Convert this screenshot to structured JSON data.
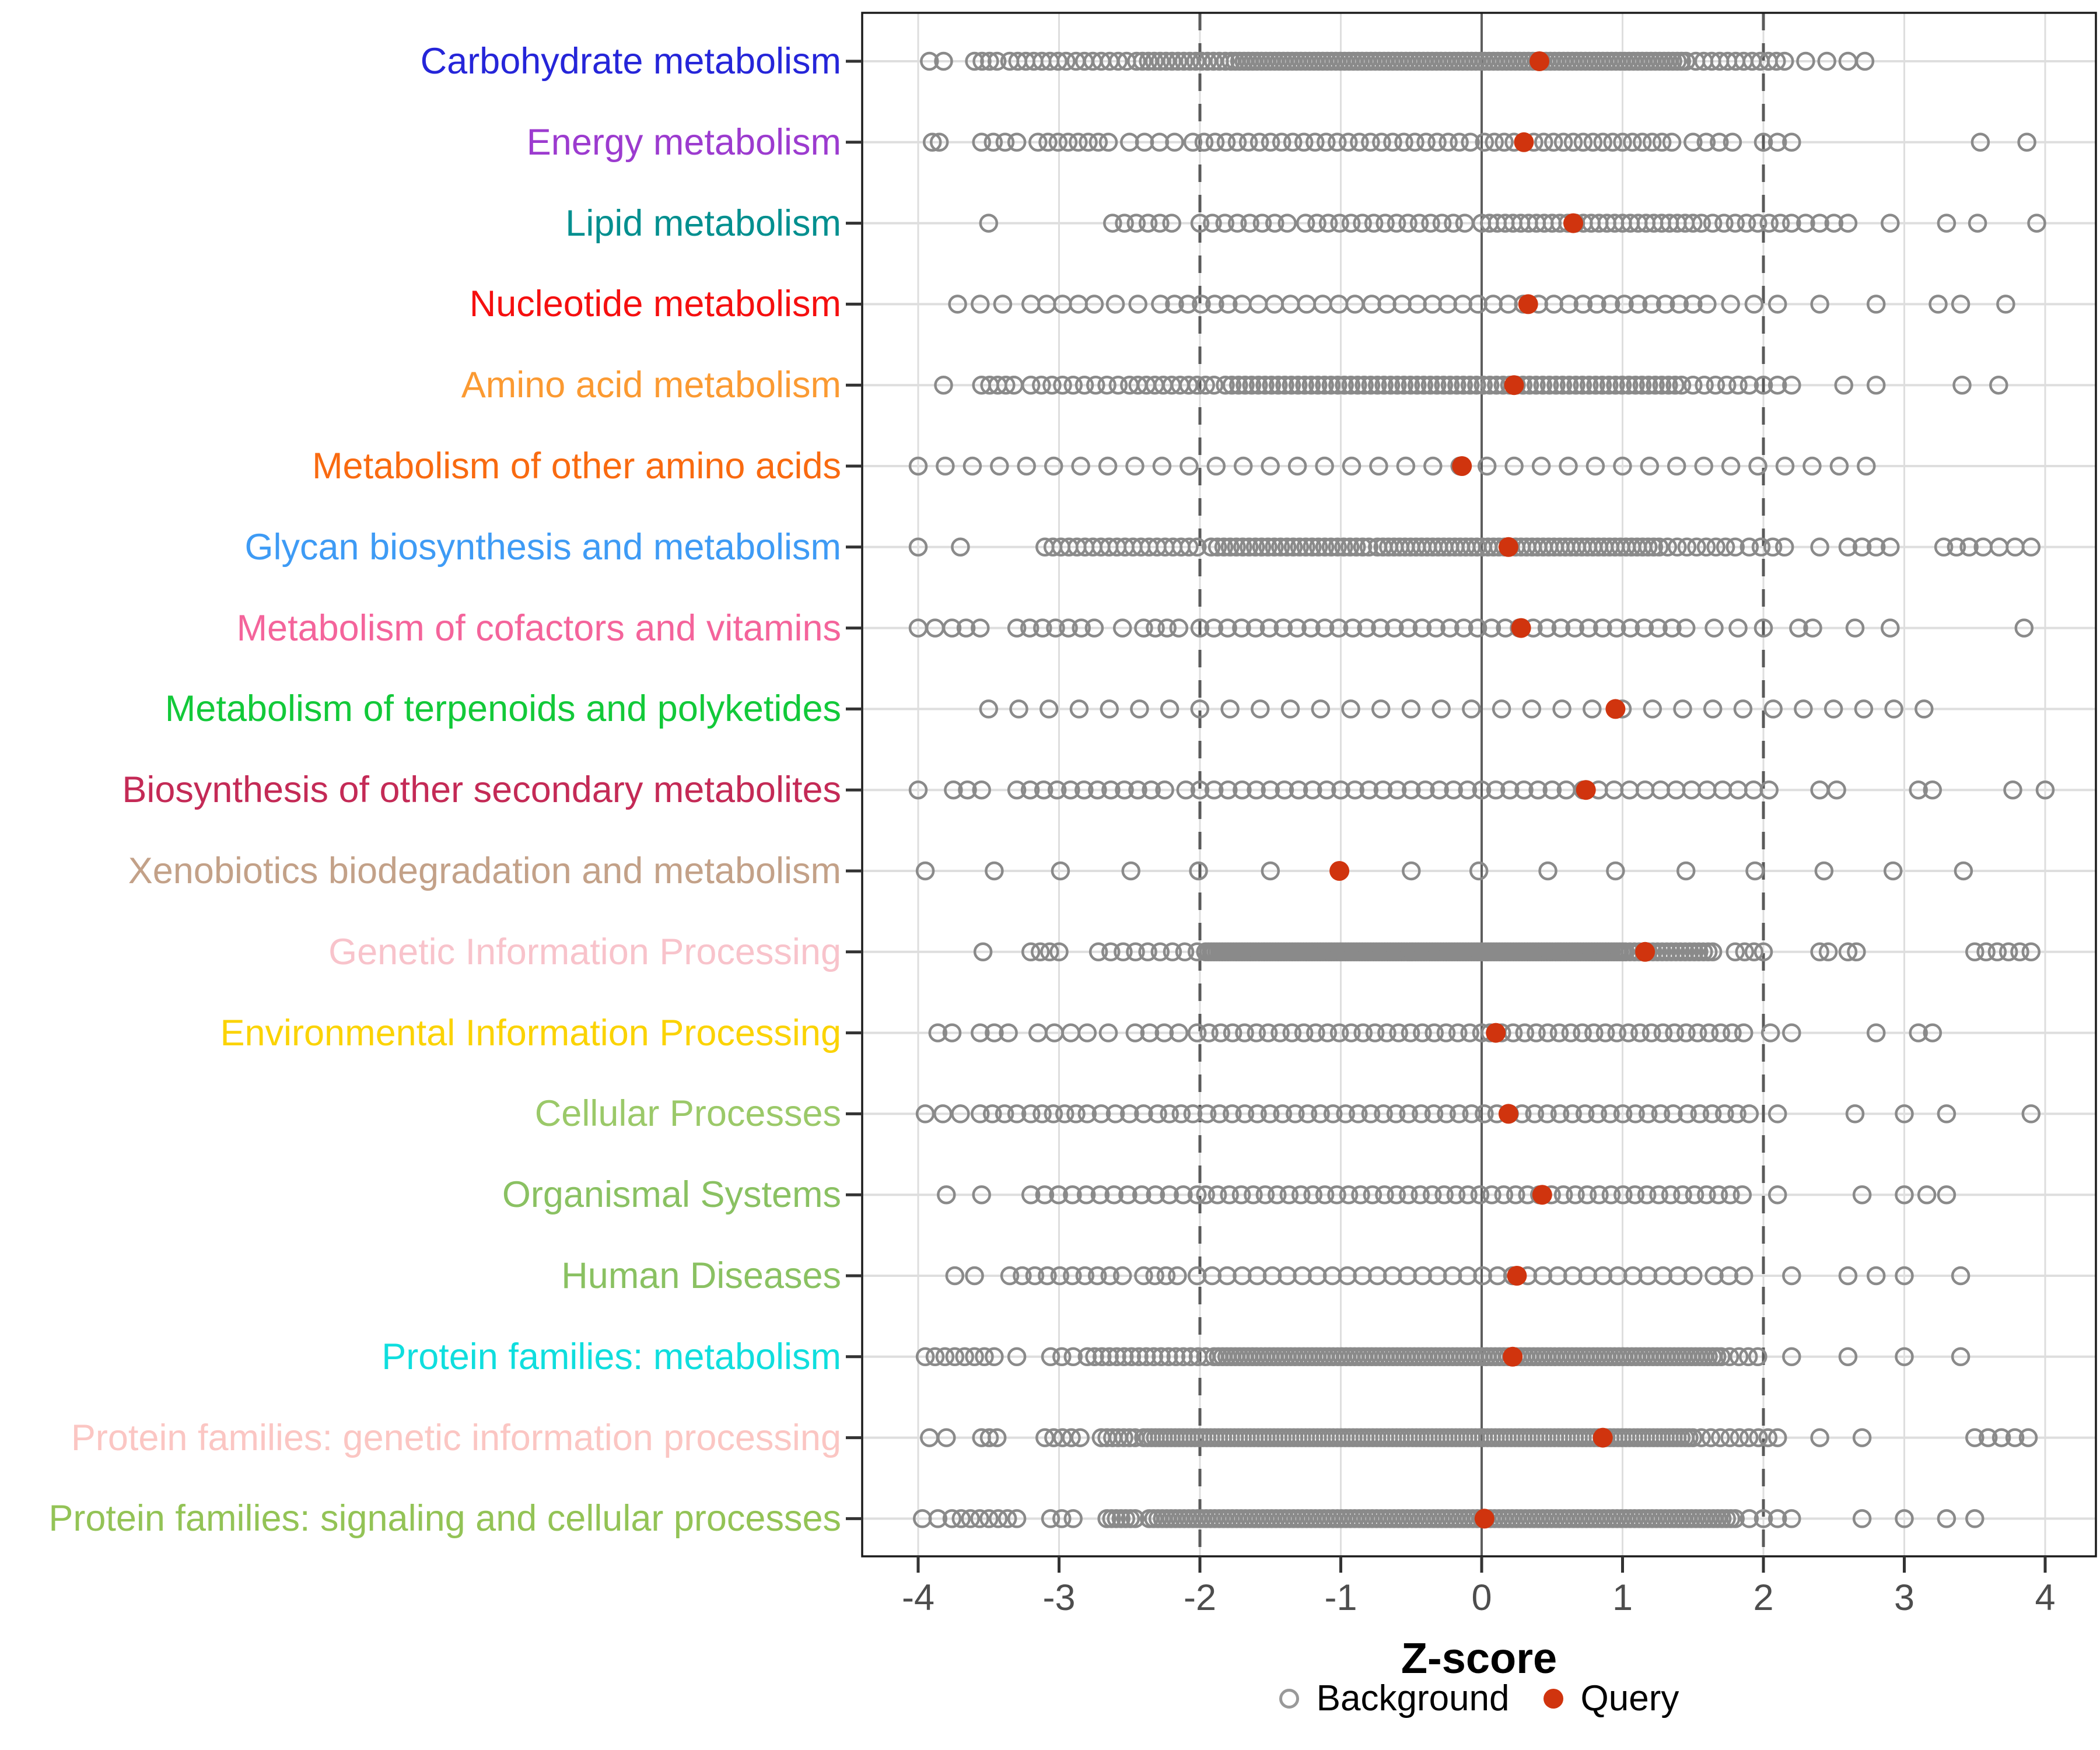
{
  "chart_data": {
    "type": "strip",
    "title": "",
    "xlabel": "Z-score",
    "x_ticks": [
      "-4",
      "-3",
      "-2",
      "-1",
      "0",
      "1",
      "2",
      "3",
      "4"
    ],
    "x_tick_values": [
      -4,
      -3,
      -2,
      -1,
      0,
      1,
      2,
      3,
      4
    ],
    "x_range": [
      -4.45,
      4.35
    ],
    "grid": "major-only",
    "ref_lines": {
      "solid_at": 0,
      "dashed_at": [
        -2,
        2
      ]
    },
    "legend": {
      "background_label": "Background",
      "query_label": "Query"
    },
    "colors": {
      "background_stroke": "#8a8a8a",
      "query_fill": "#d0340e",
      "gridline": "#dedede",
      "zero_line": "#5e5e5e",
      "dashed_line": "#5a5a5a",
      "axis_text": "#4d4d4d",
      "panel_border": "#1a1a1a",
      "tick_mark": "#333333"
    },
    "categories": [
      {
        "label": "Carbohydrate metabolism",
        "color": "#2525d9",
        "query": 0.41,
        "bg_segments": [
          [
            -3.92,
            -3.82,
            2
          ],
          [
            -3.6,
            -3.44,
            4
          ],
          [
            -3.35,
            -2.95,
            8
          ],
          [
            -2.88,
            -2.52,
            7
          ],
          [
            -2.45,
            -1.82,
            16
          ],
          [
            -1.78,
            1.45,
            105
          ],
          [
            1.52,
            1.86,
            7
          ],
          [
            1.92,
            2.15,
            5
          ]
        ],
        "bg_singles": [
          2.3,
          2.45,
          2.6,
          2.72
        ]
      },
      {
        "label": "Energy metabolism",
        "color": "#9c3bcf",
        "query": 0.3,
        "bg_segments": [
          [
            -3.9,
            -3.85,
            2
          ],
          [
            -3.55,
            -3.3,
            4
          ],
          [
            -3.15,
            -2.65,
            8
          ],
          [
            -2.5,
            -2.18,
            4
          ],
          [
            -2.05,
            -0.08,
            26
          ],
          [
            0.02,
            1.35,
            20
          ],
          [
            1.5,
            1.78,
            4
          ],
          [
            2.0,
            2.2,
            3
          ]
        ],
        "bg_singles": [
          3.54,
          3.87
        ]
      },
      {
        "label": "Lipid metabolism",
        "color": "#008f8f",
        "query": 0.65,
        "bg_segments": [
          [
            -2.62,
            -2.2,
            6
          ],
          [
            -2.0,
            -1.38,
            8
          ],
          [
            -1.25,
            -0.12,
            15
          ],
          [
            0.0,
            1.5,
            28
          ],
          [
            1.56,
            2.12,
            8
          ],
          [
            2.2,
            2.6,
            5
          ]
        ],
        "bg_singles": [
          -3.5,
          2.9,
          3.3,
          3.52,
          3.94
        ]
      },
      {
        "label": "Nucleotide metabolism",
        "color": "#f50f0f",
        "query": 0.33,
        "bg_segments": [
          [
            -3.72,
            -3.4,
            3
          ],
          [
            -3.2,
            -2.75,
            5
          ],
          [
            -2.6,
            -2.28,
            3
          ],
          [
            -2.18,
            -1.8,
            5
          ],
          [
            -1.7,
            -0.9,
            8
          ],
          [
            -0.78,
            0.62,
            14
          ],
          [
            0.72,
            1.5,
            9
          ],
          [
            1.6,
            2.1,
            4
          ]
        ],
        "bg_singles": [
          2.4,
          2.8,
          3.24,
          3.4,
          3.72
        ]
      },
      {
        "label": "Amino acid metabolism",
        "color": "#fb9a32",
        "query": 0.23,
        "bg_segments": [
          [
            -3.55,
            -3.32,
            5
          ],
          [
            -3.2,
            -2.9,
            5
          ],
          [
            -2.82,
            -2.5,
            5
          ],
          [
            -2.44,
            -1.9,
            10
          ],
          [
            -1.82,
            1.42,
            70
          ],
          [
            1.5,
            1.9,
            6
          ],
          [
            2.0,
            2.2,
            3
          ]
        ],
        "bg_singles": [
          -3.82,
          2.57,
          2.8,
          3.41,
          3.67
        ]
      },
      {
        "label": "Metabolism of other amino acids",
        "color": "#f96a10",
        "query": -0.14,
        "bg_segments": [
          [
            -4.0,
            2.73,
            36
          ]
        ],
        "bg_singles": []
      },
      {
        "label": "Glycan biosynthesis and metabolism",
        "color": "#3e9bf5",
        "query": 0.19,
        "bg_segments": [
          [
            -3.1,
            -2.02,
            20
          ],
          [
            -1.92,
            -0.8,
            26
          ],
          [
            -0.74,
            1.26,
            52
          ],
          [
            1.32,
            1.8,
            8
          ],
          [
            1.9,
            2.15,
            4
          ],
          [
            3.28,
            3.46,
            3
          ],
          [
            3.56,
            3.9,
            4
          ]
        ],
        "bg_singles": [
          -4.0,
          -3.7,
          2.4,
          2.6,
          2.7,
          2.8,
          2.9
        ]
      },
      {
        "label": "Metabolism of cofactors and vitamins",
        "color": "#f4649b",
        "query": 0.28,
        "bg_segments": [
          [
            -4.0,
            -3.88,
            2
          ],
          [
            -3.76,
            -3.56,
            3
          ],
          [
            -3.3,
            -2.75,
            7
          ],
          [
            -2.4,
            -2.15,
            4
          ],
          [
            -2.0,
            1.45,
            36
          ],
          [
            1.65,
            1.82,
            2
          ]
        ],
        "bg_singles": [
          -2.55,
          2.0,
          2.25,
          2.35,
          2.65,
          2.9,
          3.85
        ]
      },
      {
        "label": "Metabolism of terpenoids and polyketides",
        "color": "#12c939",
        "query": 0.95,
        "bg_segments": [
          [
            -3.5,
            3.14,
            32
          ]
        ],
        "bg_singles": []
      },
      {
        "label": "Biosynthesis of other secondary metabolites",
        "color": "#c42a56",
        "query": 0.74,
        "bg_segments": [
          [
            -3.75,
            -3.55,
            3
          ],
          [
            -3.3,
            -2.25,
            12
          ],
          [
            -2.1,
            0.6,
            28
          ],
          [
            0.72,
            2.04,
            13
          ]
        ],
        "bg_singles": [
          -4.0,
          2.4,
          2.52,
          3.1,
          3.2,
          3.77,
          4.0
        ]
      },
      {
        "label": "Xenobiotics biodegradation and metabolism",
        "color": "#c3a188",
        "query": -1.01,
        "bg_segments": [],
        "bg_singles": [
          -3.95,
          -3.46,
          -2.99,
          -2.49,
          -2.01,
          -1.5,
          -0.5,
          -0.02,
          0.47,
          0.95,
          1.45,
          1.94,
          2.43,
          2.92,
          3.42
        ]
      },
      {
        "label": "Genetic Information Processing",
        "color": "#f8c3cb",
        "query": 1.16,
        "bg_segments": [
          [
            -3.2,
            -3.0,
            4
          ],
          [
            -2.72,
            -2.02,
            9
          ],
          [
            -1.96,
            1.0,
            150
          ],
          [
            1.02,
            1.64,
            20
          ],
          [
            1.8,
            2.0,
            4
          ],
          [
            3.5,
            3.9,
            6
          ]
        ],
        "bg_singles": [
          -3.54,
          2.4,
          2.46,
          2.6,
          2.66
        ]
      },
      {
        "label": "Environmental Information Processing",
        "color": "#fbd303",
        "query": 0.1,
        "bg_segments": [
          [
            -3.86,
            -3.76,
            2
          ],
          [
            -3.56,
            -3.36,
            3
          ],
          [
            -3.15,
            -2.8,
            4
          ],
          [
            -2.46,
            -2.15,
            4
          ],
          [
            -2.02,
            0.0,
            25
          ],
          [
            0.06,
            1.86,
            23
          ],
          [
            2.05,
            2.2,
            2
          ]
        ],
        "bg_singles": [
          -2.65,
          2.8,
          3.1,
          3.2
        ]
      },
      {
        "label": "Cellular Processes",
        "color": "#9bc969",
        "query": 0.19,
        "bg_segments": [
          [
            -3.95,
            -3.7,
            3
          ],
          [
            -3.56,
            -3.3,
            4
          ],
          [
            -3.2,
            -2.8,
            6
          ],
          [
            -2.7,
            -2.4,
            4
          ],
          [
            -2.3,
            -2.05,
            4
          ],
          [
            -1.95,
            1.36,
            38
          ],
          [
            1.46,
            1.9,
            6
          ]
        ],
        "bg_singles": [
          2.1,
          2.65,
          3.0,
          3.3,
          3.9
        ]
      },
      {
        "label": "Organismal Systems",
        "color": "#8ac162",
        "query": 0.43,
        "bg_segments": [
          [
            -3.2,
            -2.02,
            13
          ],
          [
            -1.96,
            1.85,
            46
          ]
        ],
        "bg_singles": [
          -3.8,
          -3.55,
          2.1,
          2.7,
          3.0,
          3.16,
          3.3
        ]
      },
      {
        "label": "Human Diseases",
        "color": "#8ac162",
        "query": 0.25,
        "bg_segments": [
          [
            -3.74,
            -3.6,
            2
          ],
          [
            -3.35,
            -2.55,
            10
          ],
          [
            -2.4,
            -2.16,
            4
          ],
          [
            -2.02,
            1.5,
            34
          ],
          [
            1.65,
            1.86,
            3
          ]
        ],
        "bg_singles": [
          2.2,
          2.6,
          2.8,
          3.0,
          3.4
        ]
      },
      {
        "label": "Protein families: metabolism",
        "color": "#0fdede",
        "query": 0.22,
        "bg_segments": [
          [
            -3.95,
            -3.46,
            8
          ],
          [
            -3.06,
            -2.9,
            3
          ],
          [
            -2.8,
            -1.96,
            17
          ],
          [
            -1.9,
            1.7,
            120
          ],
          [
            1.76,
            1.96,
            4
          ]
        ],
        "bg_singles": [
          -3.3,
          2.2,
          2.6,
          3.0,
          3.4
        ]
      },
      {
        "label": "Protein families: genetic information processing",
        "color": "#fbc6c3",
        "query": 0.86,
        "bg_segments": [
          [
            -3.55,
            -3.44,
            3
          ],
          [
            -3.1,
            -2.85,
            5
          ],
          [
            -2.7,
            -2.46,
            7
          ],
          [
            -2.4,
            1.5,
            140
          ],
          [
            1.56,
            2.1,
            9
          ],
          [
            3.5,
            3.88,
            5
          ]
        ],
        "bg_singles": [
          -3.92,
          -3.8,
          2.4,
          2.7
        ]
      },
      {
        "label": "Protein families: signaling and cellular processes",
        "color": "#93c356",
        "query": 0.02,
        "bg_segments": [
          [
            -3.97,
            -3.86,
            2
          ],
          [
            -3.76,
            -3.3,
            8
          ],
          [
            -3.06,
            -2.9,
            3
          ],
          [
            -2.66,
            -2.46,
            7
          ],
          [
            -2.36,
            1.8,
            135
          ],
          [
            1.9,
            2.2,
            4
          ]
        ],
        "bg_singles": [
          2.7,
          3.0,
          3.3,
          3.5
        ]
      }
    ]
  },
  "layout_note": "KEGG pathway category Z-score strip plot, background distributions vs query values"
}
